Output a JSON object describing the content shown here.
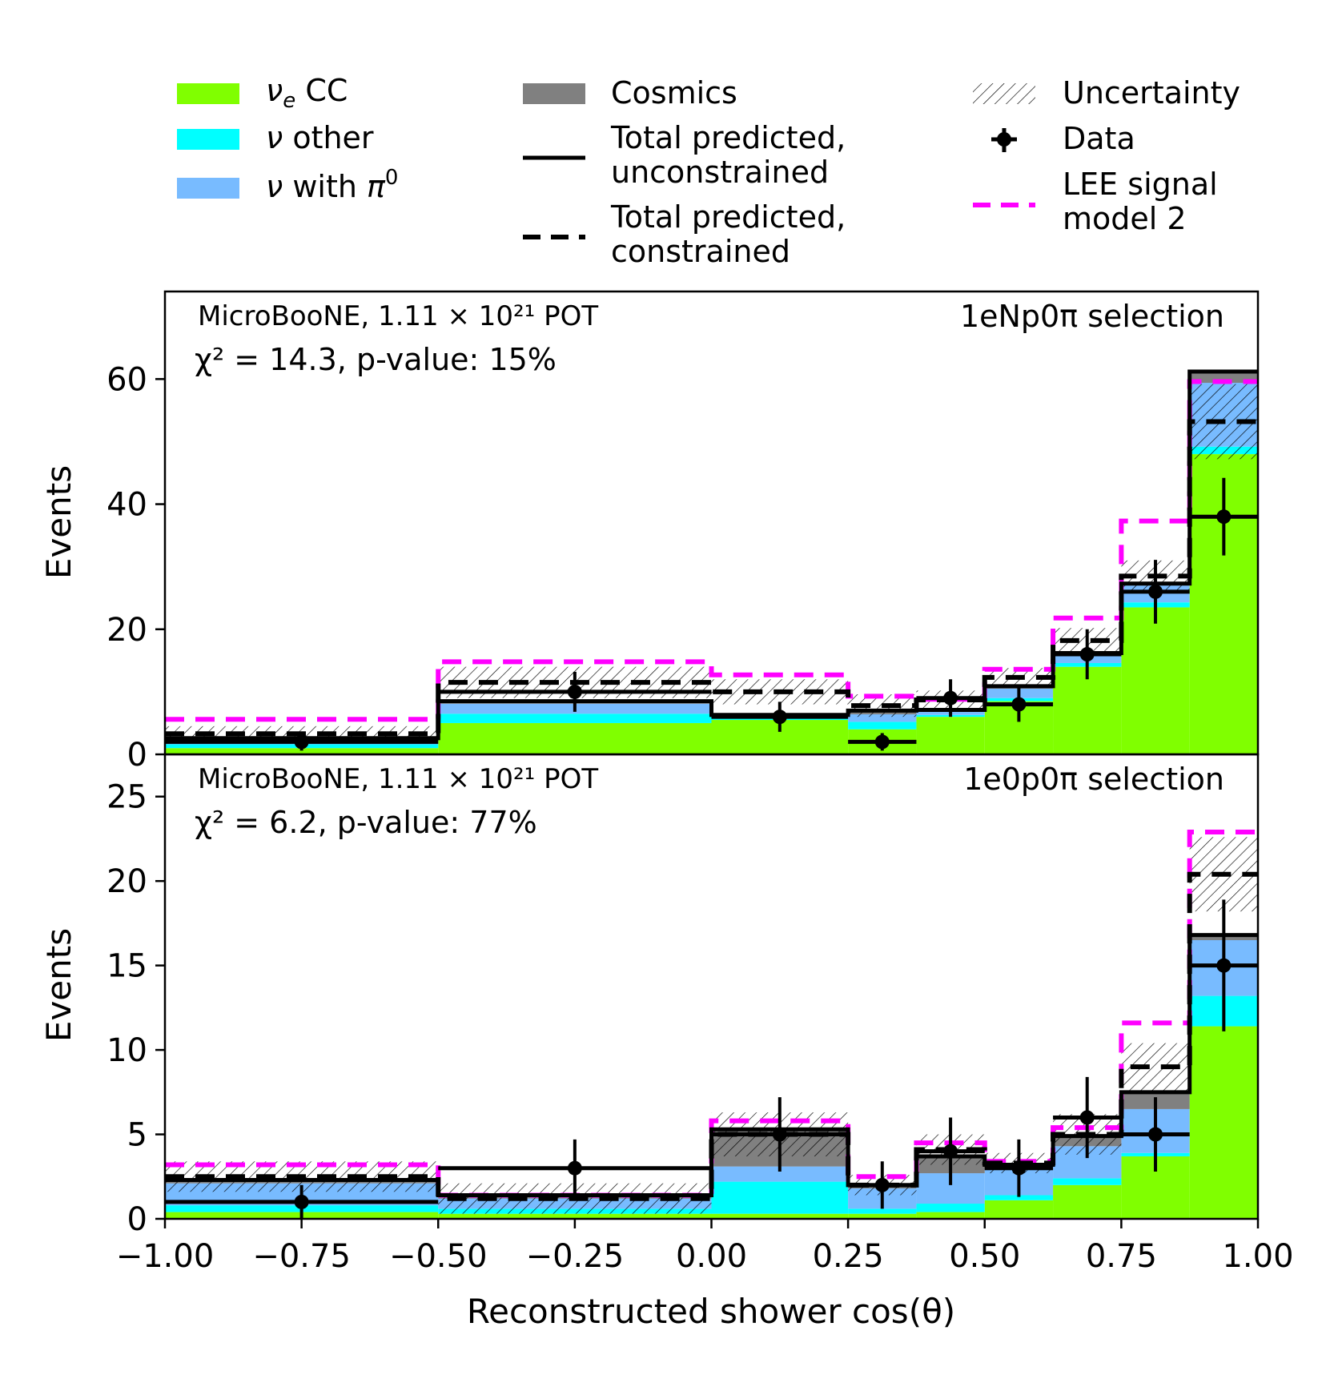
{
  "colors": {
    "nue_cc": "#80ff00",
    "nu_other": "#00ffff",
    "nu_pi0": "#78bbff",
    "cosmics": "#808080",
    "lee": "#ff00ff",
    "line": "#000000"
  },
  "legend": {
    "nue_cc": "ν<sub>e</sub> CC",
    "nu_other": "ν other",
    "nu_pi0": "ν with π<sup>0</sup>",
    "cosmics": "Cosmics",
    "unconstrained": [
      "Total predicted,",
      "unconstrained"
    ],
    "constrained": [
      "Total predicted,",
      "constrained"
    ],
    "uncertainty": "Uncertainty",
    "data": "Data",
    "lee": [
      "LEE signal",
      "model 2"
    ]
  },
  "chart_data": [
    {
      "type": "bar",
      "stacked": true,
      "title": "",
      "selection_label": "1eNp0π selection",
      "experiment_label": "MicroBooNE, 1.11 × 10²¹ POT",
      "stat_label": "χ² = 14.3, p-value: 15%",
      "ylabel": "Events",
      "xlabel": "",
      "xlim": [
        -1.0,
        1.0
      ],
      "ylim": [
        0,
        74
      ],
      "yticks": [
        "0",
        "20",
        "40",
        "60"
      ],
      "ytick_values": [
        0,
        20,
        40,
        60
      ],
      "bin_edges": [
        -1.0,
        -0.5,
        0.0,
        0.25,
        0.375,
        0.5,
        0.625,
        0.75,
        0.875,
        1.0
      ],
      "series": [
        {
          "name": "νe CC",
          "key": "nue_cc",
          "values": [
            1.0,
            5.0,
            5.5,
            4.0,
            6.0,
            8.5,
            14.0,
            23.5,
            48.0
          ]
        },
        {
          "name": "ν other",
          "key": "nu_other",
          "values": [
            0.6,
            1.5,
            0.3,
            1.2,
            0.3,
            0.5,
            0.6,
            0.8,
            1.2
          ]
        },
        {
          "name": "ν with π0",
          "key": "nu_pi0",
          "values": [
            0.8,
            1.6,
            0.3,
            1.2,
            0.6,
            1.5,
            1.4,
            2.7,
            10.2
          ]
        },
        {
          "name": "Cosmics",
          "key": "cosmics",
          "values": [
            0.2,
            0.4,
            0.2,
            0.6,
            0.2,
            0.4,
            0.2,
            0.3,
            1.8
          ]
        }
      ],
      "total_unconstrained": [
        2.6,
        8.5,
        6.3,
        7.0,
        7.1,
        10.9,
        16.2,
        27.3,
        61.2
      ],
      "total_constrained": [
        3.3,
        11.5,
        10.0,
        7.8,
        8.7,
        12.3,
        18.2,
        28.5,
        53.2
      ],
      "uncertainty_width": [
        1.2,
        2.5,
        2.0,
        1.8,
        1.5,
        1.5,
        2.0,
        2.5,
        6.0
      ],
      "lee_model2": [
        5.6,
        14.8,
        12.7,
        9.3,
        8.8,
        13.6,
        21.8,
        37.3,
        59.6
      ],
      "data": {
        "x": [
          -0.75,
          -0.25,
          0.125,
          0.3125,
          0.4375,
          0.5625,
          0.6875,
          0.8125,
          0.9375
        ],
        "y": [
          2,
          10,
          6,
          2,
          9,
          8,
          16,
          26,
          38
        ],
        "yerr": [
          1.4,
          3.2,
          2.4,
          1.4,
          3.0,
          2.8,
          4.0,
          5.1,
          6.2
        ],
        "xerr": [
          0.25,
          0.25,
          0.125,
          0.0625,
          0.0625,
          0.0625,
          0.0625,
          0.0625,
          0.0625
        ]
      }
    },
    {
      "type": "bar",
      "stacked": true,
      "title": "",
      "selection_label": "1e0p0π selection",
      "experiment_label": "MicroBooNE, 1.11 × 10²¹ POT",
      "stat_label": "χ² = 6.2, p-value: 77%",
      "ylabel": "Events",
      "xlabel": "Reconstructed shower cos(θ)",
      "xlim": [
        -1.0,
        1.0
      ],
      "ylim": [
        0,
        27.5
      ],
      "yticks": [
        "0",
        "5",
        "10",
        "15",
        "20",
        "25"
      ],
      "ytick_values": [
        0,
        5,
        10,
        15,
        20,
        25
      ],
      "xticks": [
        "−1.00",
        "−0.75",
        "−0.50",
        "−0.25",
        "0.00",
        "0.25",
        "0.50",
        "0.75",
        "1.00"
      ],
      "xtick_values": [
        -1.0,
        -0.75,
        -0.5,
        -0.25,
        0.0,
        0.25,
        0.5,
        0.75,
        1.0
      ],
      "bin_edges": [
        -1.0,
        -0.5,
        0.0,
        0.25,
        0.375,
        0.5,
        0.625,
        0.75,
        0.875,
        1.0
      ],
      "series": [
        {
          "name": "νe CC",
          "key": "nue_cc",
          "values": [
            0.4,
            0.3,
            0.3,
            0.3,
            0.4,
            1.1,
            2.0,
            3.7,
            11.4
          ]
        },
        {
          "name": "ν other",
          "key": "nu_other",
          "values": [
            0.4,
            0.3,
            1.9,
            0.3,
            0.5,
            0.3,
            0.4,
            0.2,
            1.8
          ]
        },
        {
          "name": "ν with π0",
          "key": "nu_pi0",
          "values": [
            1.3,
            0.6,
            0.9,
            1.2,
            1.8,
            1.5,
            1.9,
            2.6,
            3.3
          ]
        },
        {
          "name": "Cosmics",
          "key": "cosmics",
          "values": [
            0.2,
            0.2,
            2.2,
            0.2,
            1.0,
            0.3,
            0.6,
            0.9,
            0.3
          ]
        }
      ],
      "total_unconstrained": [
        2.3,
        1.4,
        5.3,
        2.0,
        3.7,
        3.2,
        4.9,
        7.5,
        16.8
      ],
      "total_constrained": [
        2.5,
        1.2,
        5.0,
        2.0,
        4.1,
        3.3,
        5.0,
        9.0,
        20.4
      ],
      "uncertainty_width": [
        0.9,
        0.9,
        1.3,
        0.6,
        0.9,
        0.6,
        1.2,
        1.4,
        2.2
      ],
      "lee_model2": [
        3.2,
        1.4,
        5.8,
        2.5,
        4.5,
        3.4,
        5.4,
        11.6,
        22.9
      ],
      "data": {
        "x": [
          -0.75,
          -0.25,
          0.125,
          0.3125,
          0.4375,
          0.5625,
          0.6875,
          0.8125,
          0.9375
        ],
        "y": [
          1,
          3,
          5,
          2,
          4,
          3,
          6,
          5,
          15
        ],
        "yerr": [
          1.0,
          1.7,
          2.2,
          1.4,
          2.0,
          1.7,
          2.4,
          2.2,
          3.9
        ],
        "xerr": [
          0.25,
          0.25,
          0.125,
          0.0625,
          0.0625,
          0.0625,
          0.0625,
          0.0625,
          0.0625
        ]
      }
    }
  ]
}
